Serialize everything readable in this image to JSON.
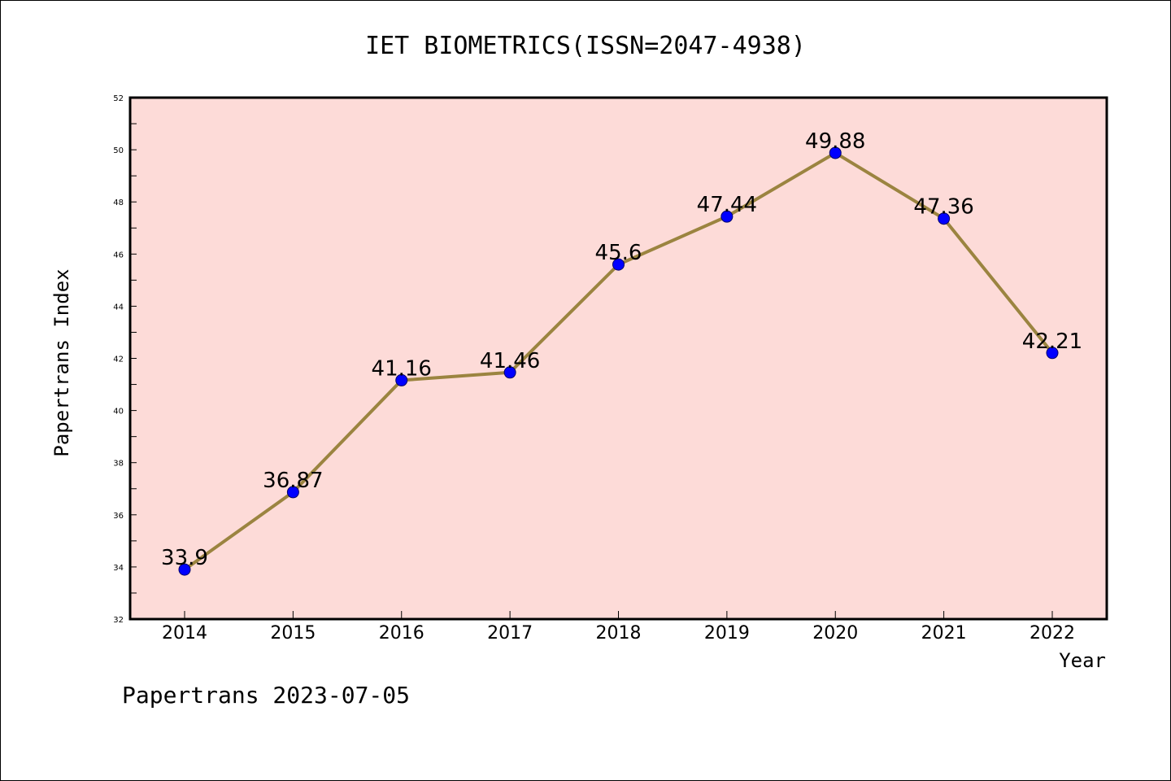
{
  "chart_data": {
    "type": "line",
    "title": "IET BIOMETRICS(ISSN=2047-4938)",
    "xlabel": "Year",
    "ylabel": "Papertrans Index",
    "categories": [
      "2014",
      "2015",
      "2016",
      "2017",
      "2018",
      "2019",
      "2020",
      "2021",
      "2022"
    ],
    "series": [
      {
        "values": [
          33.9,
          36.87,
          41.16,
          41.46,
          45.6,
          47.44,
          49.88,
          47.36,
          42.21
        ],
        "labels": [
          "33.9",
          "36.87",
          "41.16",
          "41.46",
          "45.6",
          "47.44",
          "49.88",
          "47.36",
          "42.21"
        ]
      }
    ],
    "ylim": [
      32,
      52
    ],
    "yticks": [
      "32",
      "34",
      "36",
      "38",
      "40",
      "42",
      "44",
      "46",
      "48",
      "50",
      "52"
    ],
    "grid": false,
    "colors": {
      "plot_background": "#fddbd8",
      "line": "#9b8440",
      "marker": "#0000ff"
    }
  },
  "footer": "Papertrans 2023-07-05"
}
